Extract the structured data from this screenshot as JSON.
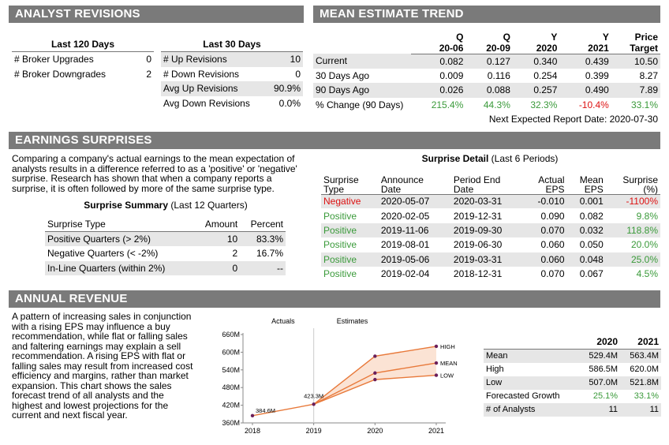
{
  "sections": {
    "analyst_revisions": "ANALYST REVISIONS",
    "mean_estimate_trend": "MEAN ESTIMATE TREND",
    "earnings_surprises": "EARNINGS SURPRISES",
    "annual_revenue": "ANNUAL REVENUE"
  },
  "revisions": {
    "last120_title": "Last 120 Days",
    "last30_title": "Last 30 Days",
    "last120": [
      {
        "label": "# Broker Upgrades",
        "value": "0"
      },
      {
        "label": "# Broker Downgrades",
        "value": "2"
      }
    ],
    "last30": [
      {
        "label": "# Up Revisions",
        "value": "10"
      },
      {
        "label": "# Down Revisions",
        "value": "0"
      },
      {
        "label": "Avg Up Revisions",
        "value": "90.9%"
      },
      {
        "label": "Avg Down Revisions",
        "value": "0.0%"
      }
    ]
  },
  "trend": {
    "headers": [
      {
        "l1": "Q",
        "l2": "20-06"
      },
      {
        "l1": "Q",
        "l2": "20-09"
      },
      {
        "l1": "Y",
        "l2": "2020"
      },
      {
        "l1": "Y",
        "l2": "2021"
      },
      {
        "l1": "Price",
        "l2": "Target"
      }
    ],
    "rows": [
      {
        "label": "Current",
        "values": [
          "0.082",
          "0.127",
          "0.340",
          "0.439",
          "10.50"
        ]
      },
      {
        "label": "30 Days Ago",
        "values": [
          "0.009",
          "0.116",
          "0.254",
          "0.399",
          "8.27"
        ]
      },
      {
        "label": "90 Days Ago",
        "values": [
          "0.026",
          "0.088",
          "0.257",
          "0.490",
          "7.89"
        ]
      },
      {
        "label": "% Change (90 Days)",
        "values": [
          "215.4%",
          "44.3%",
          "32.3%",
          "-10.4%",
          "33.1%"
        ]
      }
    ],
    "next_report": "Next Expected Report Date: 2020-07-30"
  },
  "surprises": {
    "description": "Comparing a company's actual earnings to the mean expectation of analysts results in a difference referred to as a 'positive' or 'negative' surprise. Research has shown that when a company reports a surprise, it is often followed by more of the same surprise type.",
    "summary_title": "Surprise Summary",
    "summary_sub": "(Last 12 Quarters)",
    "summary_headers": [
      "Surprise Type",
      "Amount",
      "Percent"
    ],
    "summary_rows": [
      {
        "type": "Positive Quarters (> 2%)",
        "amount": "10",
        "percent": "83.3%"
      },
      {
        "type": "Negative Quarters (< -2%)",
        "amount": "2",
        "percent": "16.7%"
      },
      {
        "type": "In-Line Quarters (within 2%)",
        "amount": "0",
        "percent": "--"
      }
    ],
    "detail_title": "Surprise Detail",
    "detail_sub": "(Last 6 Periods)",
    "detail_headers": [
      {
        "l1": "Surprise",
        "l2": "Type"
      },
      {
        "l1": "Announce",
        "l2": "Date"
      },
      {
        "l1": "Period End",
        "l2": "Date"
      },
      {
        "l1": "Actual",
        "l2": "EPS"
      },
      {
        "l1": "Mean",
        "l2": "EPS"
      },
      {
        "l1": "Surprise",
        "l2": "(%)"
      }
    ],
    "detail_rows": [
      {
        "type": "Negative",
        "announce": "2020-05-07",
        "period": "2020-03-31",
        "actual": "-0.010",
        "mean": "0.001",
        "surprise": "-1100%"
      },
      {
        "type": "Positive",
        "announce": "2020-02-05",
        "period": "2019-12-31",
        "actual": "0.090",
        "mean": "0.082",
        "surprise": "9.8%"
      },
      {
        "type": "Positive",
        "announce": "2019-11-06",
        "period": "2019-09-30",
        "actual": "0.070",
        "mean": "0.032",
        "surprise": "118.8%"
      },
      {
        "type": "Positive",
        "announce": "2019-08-01",
        "period": "2019-06-30",
        "actual": "0.060",
        "mean": "0.050",
        "surprise": "20.0%"
      },
      {
        "type": "Positive",
        "announce": "2019-05-06",
        "period": "2019-03-31",
        "actual": "0.060",
        "mean": "0.048",
        "surprise": "25.0%"
      },
      {
        "type": "Positive",
        "announce": "2019-02-04",
        "period": "2018-12-31",
        "actual": "0.070",
        "mean": "0.067",
        "surprise": "4.5%"
      }
    ]
  },
  "revenue": {
    "description": "A pattern of increasing sales in conjunction with a rising EPS may influence a buy recommendation, while flat or falling sales and faltering earnings may explain a sell recommendation. A rising EPS with flat or falling sales may result from increased cost efficiency and margins, rather than market expansion. This chart shows the sales forecast trend of all analysts and the highest and lowest projections for the current and next fiscal year.",
    "table_headers": [
      "2020",
      "2021"
    ],
    "table_rows": [
      {
        "label": "Mean",
        "values": [
          "529.4M",
          "563.4M"
        ]
      },
      {
        "label": "High",
        "values": [
          "586.5M",
          "620.0M"
        ]
      },
      {
        "label": "Low",
        "values": [
          "507.0M",
          "521.8M"
        ]
      },
      {
        "label": "Forecasted Growth",
        "values": [
          "25.1%",
          "33.1%"
        ]
      },
      {
        "label": "# of Analysts",
        "values": [
          "11",
          "11"
        ]
      }
    ]
  },
  "chart_data": {
    "type": "line",
    "x": [
      "2018",
      "2019",
      "2020",
      "2021"
    ],
    "section_labels": [
      "Actuals",
      "Estimates"
    ],
    "ylim": [
      360,
      660
    ],
    "y_ticks": [
      "360M",
      "420M",
      "480M",
      "540M",
      "600M",
      "660M"
    ],
    "actual": [
      384.6,
      423.3
    ],
    "actual_labels": [
      "384.6M",
      "423.3M"
    ],
    "series": [
      {
        "name": "HIGH",
        "values": [
          null,
          423.3,
          586.5,
          620.0
        ]
      },
      {
        "name": "MEAN",
        "values": [
          null,
          423.3,
          529.4,
          563.4
        ]
      },
      {
        "name": "LOW",
        "values": [
          null,
          423.3,
          507.0,
          521.8
        ]
      }
    ],
    "colors": {
      "line": "#e8793a",
      "band": "#fbe3d4",
      "dot": "#6a1f5a"
    }
  }
}
